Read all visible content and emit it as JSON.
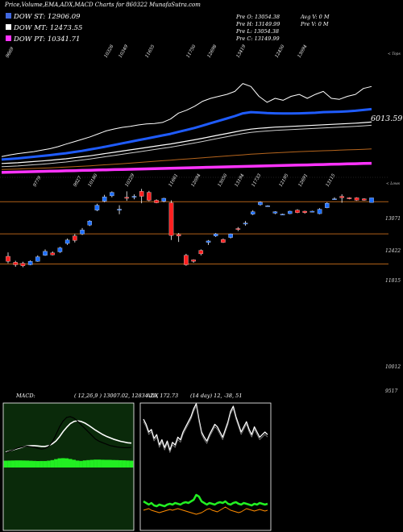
{
  "header": {
    "title": "Price,Volume,EMA,ADX,MACD Charts for 860322  MunafaSutra.com"
  },
  "legend": [
    {
      "label": "DOW ST: 12906.09",
      "color": "#4169e1"
    },
    {
      "label": "DOW MT: 12473.55",
      "color": "#ffffff"
    },
    {
      "label": "DOW PT: 10341.71",
      "color": "#ff33ff"
    }
  ],
  "ohlc_info": {
    "col1": [
      "Pre  O: 13054.38",
      "Pre  H: 13149.99",
      "Pre  L: 13054.38",
      "Pre  C: 13149.99"
    ],
    "col2": [
      "Avg V: 0  M",
      "Pre  V: 0  M"
    ]
  },
  "side_labels": {
    "tops": "< Tops",
    "lows": "< Lows",
    "ema_value": "6013.59"
  },
  "macd_label": "MACD:",
  "macd_params": "( 12,26,9 ) 13007.02,  12834.29,  172.73",
  "adx_label": "ADX",
  "adx_params": "(14  day) 12,  -38,  51",
  "colors": {
    "ema_short": "#1f5cff",
    "ema_mid": "#ffffff",
    "ema_long": "#ff33ff",
    "ema_brown": "#b5651d",
    "up_candle": "#1e6fff",
    "down_candle": "#ff2020",
    "hline": "#b06018",
    "macd_panel": "#0a2a0a",
    "macd_bar": "#22ee22",
    "adx_plus": "#22ee22",
    "adx_minus": "#ff8c00"
  },
  "chart_data": [
    {
      "type": "line",
      "name": "EMA panel",
      "tops_labels": [
        "9669",
        "10326",
        "10349",
        "11655",
        "11750",
        "12698",
        "13419",
        "12450",
        "13094"
      ],
      "lows_labels": [
        "9779",
        "9927",
        "10180",
        "10229",
        "11661",
        "12094",
        "13050",
        "13194",
        "11733",
        "12195",
        "12691",
        "13115"
      ],
      "price_close": [
        5750,
        5830,
        5900,
        5950,
        6000,
        6080,
        6150,
        6250,
        6380,
        6500,
        6620,
        6750,
        6900,
        7050,
        7150,
        7230,
        7280,
        7350,
        7400,
        7420,
        7480,
        7650,
        7950,
        8100,
        8300,
        8550,
        8700,
        8800,
        8900,
        9050,
        9450,
        9300,
        8800,
        8500,
        8700,
        8600,
        8800,
        8900,
        8700,
        8900,
        9050,
        8700,
        8650,
        8800,
        8900,
        9200,
        9300
      ],
      "ema_short": [
        5600,
        5630,
        5660,
        5700,
        5740,
        5780,
        5820,
        5870,
        5920,
        5980,
        6040,
        6110,
        6180,
        6260,
        6340,
        6420,
        6500,
        6580,
        6660,
        6740,
        6820,
        6900,
        7000,
        7100,
        7200,
        7320,
        7440,
        7560,
        7680,
        7800,
        7940,
        8000,
        7980,
        7950,
        7940,
        7930,
        7930,
        7940,
        7950,
        7970,
        8000,
        8010,
        8020,
        8040,
        8070,
        8110,
        8150
      ],
      "ema_mid": [
        5400,
        5420,
        5440,
        5470,
        5500,
        5530,
        5560,
        5600,
        5640,
        5690,
        5740,
        5790,
        5850,
        5910,
        5970,
        6030,
        6090,
        6150,
        6210,
        6270,
        6330,
        6390,
        6460,
        6530,
        6600,
        6680,
        6760,
        6840,
        6920,
        7000,
        7080,
        7140,
        7180,
        7210,
        7240,
        7260,
        7280,
        7300,
        7320,
        7340,
        7360,
        7380,
        7400,
        7420,
        7440,
        7470,
        7500
      ],
      "ema_brown": [
        5100,
        5110,
        5120,
        5135,
        5150,
        5165,
        5180,
        5200,
        5220,
        5240,
        5260,
        5285,
        5310,
        5335,
        5360,
        5390,
        5420,
        5450,
        5480,
        5510,
        5540,
        5570,
        5600,
        5630,
        5660,
        5690,
        5720,
        5750,
        5780,
        5810,
        5840,
        5870,
        5895,
        5920,
        5940,
        5960,
        5980,
        6000,
        6015,
        6030,
        6045,
        6060,
        6075,
        6090,
        6105,
        6120,
        6135
      ],
      "ema_long": [
        4950,
        4960,
        4970,
        4980,
        4990,
        5000,
        5010,
        5020,
        5030,
        5040,
        5050,
        5060,
        5070,
        5080,
        5090,
        5100,
        5110,
        5120,
        5130,
        5140,
        5150,
        5160,
        5170,
        5180,
        5190,
        5200,
        5210,
        5220,
        5230,
        5240,
        5250,
        5260,
        5270,
        5280,
        5290,
        5300,
        5310,
        5320,
        5330,
        5340,
        5350,
        5360,
        5370,
        5380,
        5390,
        5400,
        5410
      ]
    },
    {
      "type": "bar",
      "name": "Candlesticks",
      "y_ticks": [
        "13071",
        "12422",
        "11815",
        "10012",
        "9517"
      ],
      "candles": [
        {
          "o": 11970,
          "c": 11870,
          "h": 12050,
          "l": 11830
        },
        {
          "o": 11850,
          "c": 11800,
          "h": 11880,
          "l": 11760
        },
        {
          "o": 11830,
          "c": 11780,
          "h": 11860,
          "l": 11750
        },
        {
          "o": 11800,
          "c": 11870,
          "h": 11890,
          "l": 11790
        },
        {
          "o": 11870,
          "c": 11960,
          "h": 11990,
          "l": 11860
        },
        {
          "o": 11990,
          "c": 12070,
          "h": 12110,
          "l": 11980
        },
        {
          "o": 12040,
          "c": 12000,
          "h": 12070,
          "l": 11990
        },
        {
          "o": 12060,
          "c": 12140,
          "h": 12160,
          "l": 12040
        },
        {
          "o": 12230,
          "c": 12300,
          "h": 12330,
          "l": 12200
        },
        {
          "o": 12380,
          "c": 12290,
          "h": 12420,
          "l": 12250
        },
        {
          "o": 12420,
          "c": 12500,
          "h": 12540,
          "l": 12400
        },
        {
          "o": 12600,
          "c": 12680,
          "h": 12700,
          "l": 12580
        },
        {
          "o": 12900,
          "c": 13000,
          "h": 13030,
          "l": 12880
        },
        {
          "o": 13080,
          "c": 13170,
          "h": 13210,
          "l": 13060
        },
        {
          "o": 13190,
          "c": 13260,
          "h": 13280,
          "l": 13160
        },
        {
          "o": 12900,
          "c": 12920,
          "h": 13000,
          "l": 12820
        },
        {
          "o": 13160,
          "c": 13140,
          "h": 13280,
          "l": 13090
        },
        {
          "o": 13160,
          "c": 13180,
          "h": 13220,
          "l": 13120
        },
        {
          "o": 13280,
          "c": 13180,
          "h": 13330,
          "l": 13040
        },
        {
          "o": 13260,
          "c": 13100,
          "h": 13290,
          "l": 13080
        },
        {
          "o": 13100,
          "c": 13050,
          "h": 13120,
          "l": 13040
        },
        {
          "o": 13080,
          "c": 13140,
          "h": 13150,
          "l": 13060
        },
        {
          "o": 13050,
          "c": 12390,
          "h": 13100,
          "l": 12300
        },
        {
          "o": 12410,
          "c": 12380,
          "h": 12440,
          "l": 12260
        },
        {
          "o": 11990,
          "c": 11800,
          "h": 12020,
          "l": 11780
        },
        {
          "o": 11900,
          "c": 11870,
          "h": 11910,
          "l": 11840
        },
        {
          "o": 12090,
          "c": 12020,
          "h": 12110,
          "l": 11990
        },
        {
          "o": 12250,
          "c": 12280,
          "h": 12300,
          "l": 12200
        },
        {
          "o": 12380,
          "c": 12420,
          "h": 12440,
          "l": 12360
        },
        {
          "o": 12310,
          "c": 12250,
          "h": 12330,
          "l": 12240
        },
        {
          "o": 12350,
          "c": 12420,
          "h": 12430,
          "l": 12330
        },
        {
          "o": 12530,
          "c": 12510,
          "h": 12560,
          "l": 12480
        },
        {
          "o": 12630,
          "c": 12640,
          "h": 12680,
          "l": 12590
        },
        {
          "o": 12820,
          "c": 12870,
          "h": 12900,
          "l": 12800
        },
        {
          "o": 13010,
          "c": 13060,
          "h": 13080,
          "l": 12990
        },
        {
          "o": 12990,
          "c": 12990,
          "h": 13000,
          "l": 12980
        },
        {
          "o": 12840,
          "c": 12870,
          "h": 12880,
          "l": 12820
        },
        {
          "o": 12820,
          "c": 12820,
          "h": 12830,
          "l": 12810
        },
        {
          "o": 12830,
          "c": 12880,
          "h": 12890,
          "l": 12820
        },
        {
          "o": 12900,
          "c": 12850,
          "h": 12920,
          "l": 12840
        },
        {
          "o": 12880,
          "c": 12850,
          "h": 12890,
          "l": 12830
        },
        {
          "o": 12870,
          "c": 12880,
          "h": 12890,
          "l": 12860
        },
        {
          "o": 12830,
          "c": 12920,
          "h": 12940,
          "l": 12820
        },
        {
          "o": 12950,
          "c": 13040,
          "h": 13060,
          "l": 12940
        },
        {
          "o": 13120,
          "c": 13130,
          "h": 13160,
          "l": 13110
        },
        {
          "o": 13180,
          "c": 13150,
          "h": 13220,
          "l": 13050
        },
        {
          "o": 13150,
          "c": 13130,
          "h": 13160,
          "l": 13120
        },
        {
          "o": 13150,
          "c": 13100,
          "h": 13160,
          "l": 13090
        },
        {
          "o": 13130,
          "c": 13100,
          "h": 13140,
          "l": 13090
        },
        {
          "o": 13054,
          "c": 13149,
          "h": 13150,
          "l": 13054
        }
      ]
    },
    {
      "type": "line",
      "name": "MACD",
      "macd": [
        40,
        44,
        48,
        52,
        55,
        57,
        58,
        57,
        55,
        52,
        50,
        52,
        58,
        70,
        90,
        112,
        128,
        138,
        140,
        136,
        128,
        118,
        108,
        98,
        88,
        78,
        72,
        68,
        64,
        60,
        58,
        56,
        55,
        54,
        54,
        55
      ],
      "signal": [
        35,
        38,
        41,
        44,
        47,
        50,
        52,
        53,
        53,
        52,
        51,
        51,
        53,
        58,
        66,
        78,
        92,
        104,
        114,
        120,
        122,
        120,
        116,
        110,
        103,
        96,
        90,
        84,
        79,
        75,
        71,
        68,
        65,
        63,
        61,
        60
      ],
      "histogram": [
        5,
        6,
        7,
        8,
        8,
        7,
        6,
        4,
        2,
        0,
        -1,
        1,
        5,
        12,
        24,
        34,
        36,
        34,
        26,
        16,
        6,
        -2,
        -8,
        -12,
        -15,
        -18,
        -18,
        -16,
        -15,
        -15,
        -13,
        -12,
        -10,
        -9,
        -7,
        -5
      ]
    },
    {
      "type": "line",
      "name": "ADX",
      "adx": [
        50,
        46,
        40,
        42,
        35,
        38,
        30,
        34,
        28,
        33,
        26,
        32,
        30,
        36,
        34,
        40,
        44,
        48,
        52,
        58,
        62,
        50,
        40,
        36,
        33,
        38,
        42,
        46,
        44,
        40,
        36,
        42,
        48,
        56,
        60,
        52,
        46,
        40,
        44,
        48,
        42,
        38,
        44,
        40,
        36,
        38,
        40,
        38
      ],
      "plus_di": [
        18,
        16,
        14,
        16,
        13,
        12,
        14,
        13,
        12,
        14,
        15,
        14,
        16,
        15,
        14,
        16,
        17,
        16,
        18,
        20,
        26,
        24,
        18,
        16,
        14,
        16,
        15,
        14,
        16,
        17,
        16,
        18,
        15,
        14,
        16,
        17,
        15,
        14,
        16,
        15,
        14,
        13,
        15,
        14,
        16,
        15,
        14,
        15
      ],
      "minus_di": [
        12,
        13,
        14,
        12,
        11,
        10,
        9,
        10,
        11,
        12,
        13,
        12,
        13,
        14,
        13,
        12,
        11,
        10,
        9,
        8,
        7,
        8,
        9,
        11,
        13,
        14,
        12,
        11,
        10,
        12,
        14,
        16,
        14,
        12,
        11,
        10,
        9,
        10,
        12,
        14,
        13,
        12,
        11,
        12,
        13,
        12,
        11,
        12
      ]
    }
  ]
}
